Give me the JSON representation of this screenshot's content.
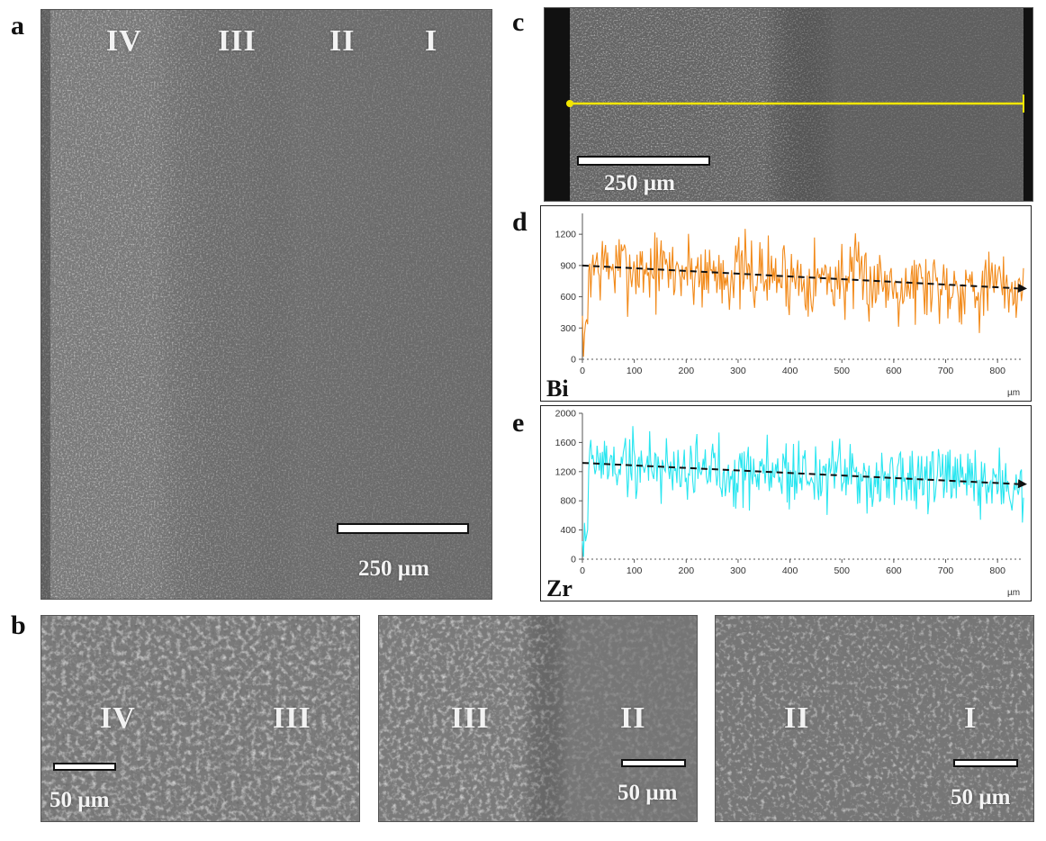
{
  "figure": {
    "panel_labels": {
      "a": "a",
      "b": "b",
      "c": "c",
      "d": "d",
      "e": "e"
    },
    "panel_a": {
      "region_labels": [
        "IV",
        "III",
        "II",
        "I"
      ],
      "scale_bar": "250 µm"
    },
    "panel_b": [
      {
        "left_label": "IV",
        "right_label": "III",
        "scale_bar": "50 µm"
      },
      {
        "left_label": "III",
        "right_label": "II",
        "scale_bar": "50 µm"
      },
      {
        "left_label": "II",
        "right_label": "I",
        "scale_bar": "50 µm"
      }
    ],
    "panel_c": {
      "scale_bar": "250 µm",
      "line_color": "#f2e600"
    },
    "colors": {
      "bi": "#f28a1a",
      "zr": "#29e6f0",
      "trend": "#111111"
    }
  },
  "chart_data": [
    {
      "type": "line",
      "element": "Bi",
      "xlabel": "µm",
      "xlim": [
        0,
        850
      ],
      "ylim": [
        0,
        1400
      ],
      "x_ticks": [
        0,
        100,
        200,
        300,
        400,
        500,
        600,
        700,
        800
      ],
      "y_ticks": [
        0,
        300,
        600,
        900,
        1200
      ],
      "series": [
        {
          "name": "Bi",
          "color": "#f28a1a",
          "mean_start": 900,
          "mean_end": 680,
          "noise": 230,
          "x_start": 0,
          "x_end": 850,
          "samples": 420
        }
      ],
      "trend_line": {
        "x": [
          0,
          850
        ],
        "y": [
          900,
          680
        ],
        "style": "dashed-arrow"
      }
    },
    {
      "type": "line",
      "element": "Zr",
      "xlabel": "µm",
      "xlim": [
        0,
        850
      ],
      "ylim": [
        0,
        2000
      ],
      "x_ticks": [
        0,
        100,
        200,
        300,
        400,
        500,
        600,
        700,
        800
      ],
      "y_ticks": [
        0,
        400,
        800,
        1200,
        1600,
        2000
      ],
      "series": [
        {
          "name": "Zr",
          "color": "#29e6f0",
          "mean_start": 1330,
          "mean_end": 1010,
          "noise": 300,
          "x_start": 0,
          "x_end": 850,
          "samples": 420
        }
      ],
      "trend_line": {
        "x": [
          0,
          850
        ],
        "y": [
          1320,
          1030
        ],
        "style": "dashed-arrow"
      }
    }
  ]
}
